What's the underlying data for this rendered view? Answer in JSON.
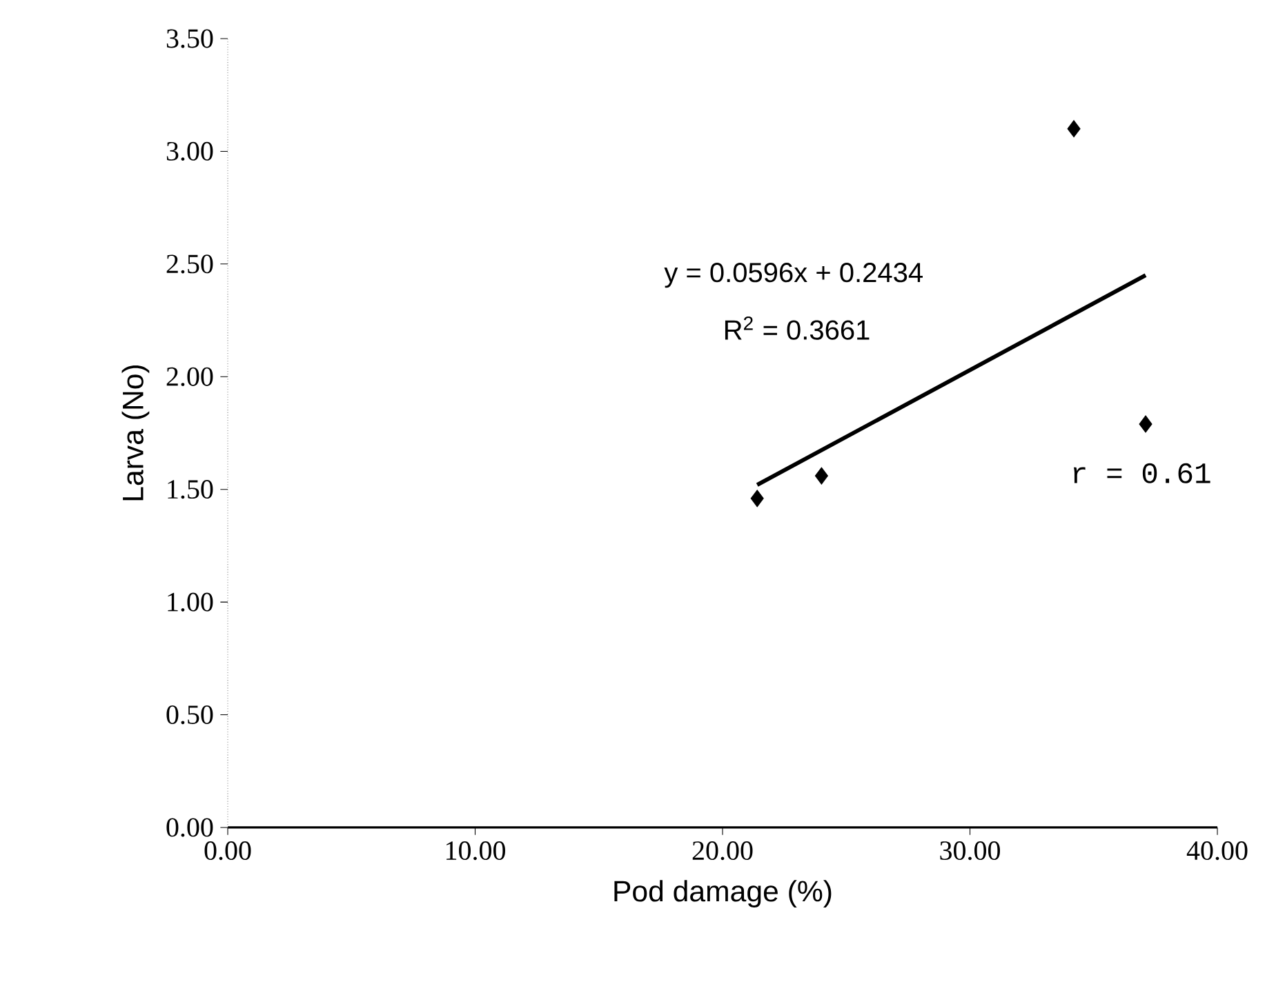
{
  "chart_data": {
    "type": "scatter",
    "xlabel": "Pod damage (%)",
    "ylabel": "Larva (No)",
    "xlim": [
      0,
      40
    ],
    "ylim": [
      0,
      3.5
    ],
    "xticks": [
      {
        "value": 0,
        "label": "0.00"
      },
      {
        "value": 10,
        "label": "10.00"
      },
      {
        "value": 20,
        "label": "20.00"
      },
      {
        "value": 30,
        "label": "30.00"
      },
      {
        "value": 40,
        "label": "40.00"
      }
    ],
    "yticks": [
      {
        "value": 0,
        "label": "0.00"
      },
      {
        "value": 0.5,
        "label": "0.50"
      },
      {
        "value": 1,
        "label": "1.00"
      },
      {
        "value": 1.5,
        "label": "1.50"
      },
      {
        "value": 2,
        "label": "2.00"
      },
      {
        "value": 2.5,
        "label": "2.50"
      },
      {
        "value": 3,
        "label": "3.00"
      },
      {
        "value": 3.5,
        "label": "3.50"
      }
    ],
    "grid": false,
    "series": [
      {
        "marker": "diamond",
        "color": "#000000",
        "x": [
          21.4,
          24.0,
          34.2,
          37.1
        ],
        "values": [
          1.46,
          1.56,
          3.1,
          1.79
        ]
      },
      {
        "type": "line",
        "marker": "none",
        "color": "#000000",
        "x": [
          21.4,
          37.1
        ],
        "values": [
          1.52,
          2.45
        ]
      }
    ],
    "annotations": [
      "y = 0.0596x + 0.2434",
      "R$^{2}$ = 0.3661",
      "r = 0.61"
    ]
  }
}
